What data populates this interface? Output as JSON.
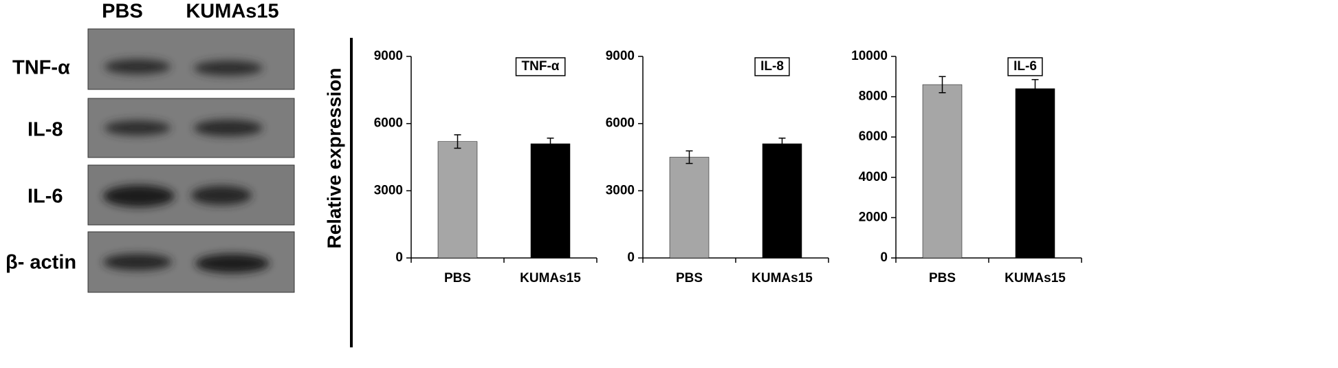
{
  "blot": {
    "columns": [
      "PBS",
      "KUMAs15"
    ],
    "rows": [
      "TNF-α",
      "IL-8",
      "IL-6",
      "β- actin"
    ]
  },
  "chart_data": [
    {
      "type": "bar",
      "title": "TNF-α",
      "ylabel": "Relative expression",
      "categories": [
        "PBS",
        "KUMAs15"
      ],
      "values": [
        5200,
        5100
      ],
      "errors": [
        300,
        250
      ],
      "colors": [
        "#a6a6a6",
        "#000000"
      ],
      "ylim": [
        0,
        9000
      ],
      "yticks": [
        0,
        3000,
        6000,
        9000
      ]
    },
    {
      "type": "bar",
      "title": "IL-8",
      "categories": [
        "PBS",
        "KUMAs15"
      ],
      "values": [
        4500,
        5100
      ],
      "errors": [
        280,
        250
      ],
      "colors": [
        "#a6a6a6",
        "#000000"
      ],
      "ylim": [
        0,
        9000
      ],
      "yticks": [
        0,
        3000,
        6000,
        9000
      ]
    },
    {
      "type": "bar",
      "title": "IL-6",
      "categories": [
        "PBS",
        "KUMAs15"
      ],
      "values": [
        8600,
        8400
      ],
      "errors": [
        400,
        450
      ],
      "colors": [
        "#a6a6a6",
        "#000000"
      ],
      "ylim": [
        0,
        10000
      ],
      "yticks": [
        0,
        2000,
        4000,
        6000,
        8000,
        10000
      ]
    }
  ]
}
